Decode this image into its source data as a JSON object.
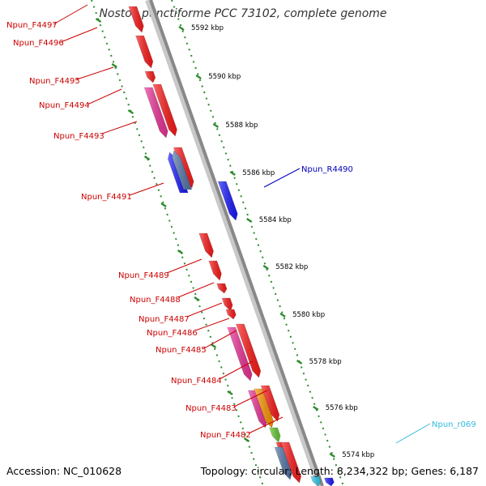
{
  "title": "Nostoc punctiforme PCC 73102, complete genome",
  "footer": {
    "accession": "Accession: NC_010628",
    "summary": "Topology: circular; Length: 8,234,322 bp; Genes: 6,187"
  },
  "ticks": [
    "5592 kbp",
    "5590 kbp",
    "5588 kbp",
    "5586 kbp",
    "5584 kbp",
    "5582 kbp",
    "5580 kbp",
    "5578 kbp",
    "5576 kbp",
    "5574 kbp"
  ],
  "gene_labels": [
    {
      "name": "Npun_F4497",
      "color": "#cc0000"
    },
    {
      "name": "Npun_F4496",
      "color": "#cc0000"
    },
    {
      "name": "Npun_F4495",
      "color": "#cc0000"
    },
    {
      "name": "Npun_F4494",
      "color": "#cc0000"
    },
    {
      "name": "Npun_F4493",
      "color": "#cc0000"
    },
    {
      "name": "Npun_F4491",
      "color": "#cc0000"
    },
    {
      "name": "Npun_F4489",
      "color": "#cc0000"
    },
    {
      "name": "Npun_F4488",
      "color": "#cc0000"
    },
    {
      "name": "Npun_F4487",
      "color": "#cc0000"
    },
    {
      "name": "Npun_F4486",
      "color": "#cc0000"
    },
    {
      "name": "Npun_F4485",
      "color": "#cc0000"
    },
    {
      "name": "Npun_F4484",
      "color": "#cc0000"
    },
    {
      "name": "Npun_F4483",
      "color": "#cc0000"
    },
    {
      "name": "Npun_F4482",
      "color": "#cc0000"
    },
    {
      "name": "Npun_R4490",
      "color": "#0000bb"
    },
    {
      "name": "Npun_r069",
      "color": "#33bbdd"
    }
  ],
  "colors": {
    "forward_gene": "#ff1a1a",
    "reverse_gene": "#1a1aff",
    "magenta_gene": "#ee3399",
    "steel_gene": "#5577aa",
    "orange_gene": "#ff9900",
    "green_gene": "#66cc33",
    "cyan_gene": "#33ccee",
    "backbone": "#999999",
    "tick_marks": "#2e8b2e"
  }
}
